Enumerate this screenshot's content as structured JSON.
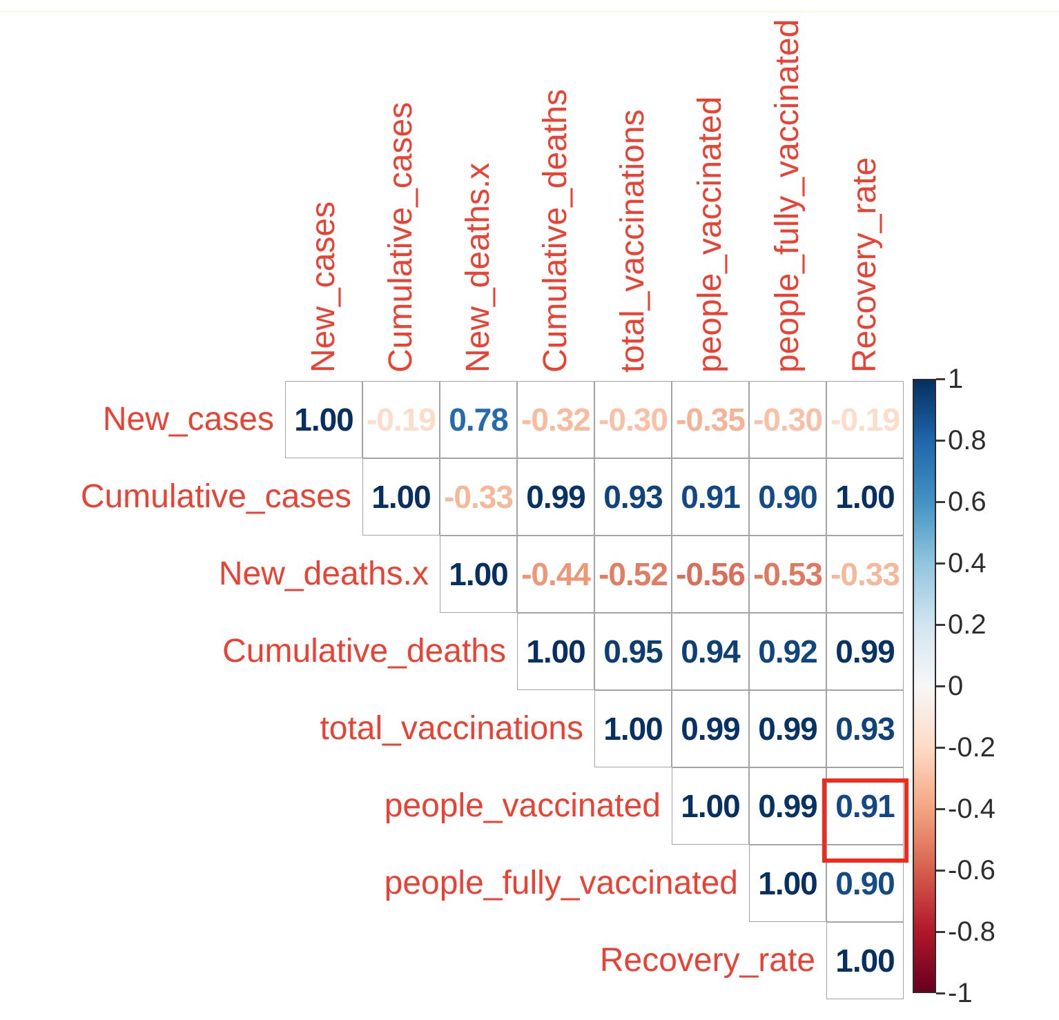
{
  "chart_data": {
    "type": "heatmap",
    "title": "",
    "description": "Upper-triangle correlation matrix with diagonal, values shown as colored numbers",
    "categories": [
      "New_cases",
      "Cumulative_cases",
      "New_deaths.x",
      "Cumulative_deaths",
      "total_vaccinations",
      "people_vaccinated",
      "people_fully_vaccinated",
      "Recovery_rate"
    ],
    "matrix": [
      [
        "1.00",
        "-0.19",
        "0.78",
        "-0.32",
        "-0.30",
        "-0.35",
        "-0.30",
        "-0.19"
      ],
      [
        null,
        "1.00",
        "-0.33",
        "0.99",
        "0.93",
        "0.91",
        "0.90",
        "1.00"
      ],
      [
        null,
        null,
        "1.00",
        "-0.44",
        "-0.52",
        "-0.56",
        "-0.53",
        "-0.33"
      ],
      [
        null,
        null,
        null,
        "1.00",
        "0.95",
        "0.94",
        "0.92",
        "0.99"
      ],
      [
        null,
        null,
        null,
        null,
        "1.00",
        "0.99",
        "0.99",
        "0.93"
      ],
      [
        null,
        null,
        null,
        null,
        null,
        "1.00",
        "0.99",
        "0.91"
      ],
      [
        null,
        null,
        null,
        null,
        null,
        null,
        "1.00",
        "0.90"
      ],
      [
        null,
        null,
        null,
        null,
        null,
        null,
        null,
        "1.00"
      ]
    ],
    "highlighted_cell": {
      "row": "people_vaccinated",
      "column": "Recovery_rate",
      "value": "0.91"
    },
    "colorbar": {
      "position": "right",
      "range": [
        -1,
        1
      ],
      "ticks": [
        "1",
        "0.8",
        "0.6",
        "0.4",
        "0.2",
        "0",
        "-0.2",
        "-0.4",
        "-0.6",
        "-0.8",
        "-1"
      ]
    },
    "colorscale": [
      {
        "t": 1.0,
        "color": "#053061"
      },
      {
        "t": 0.8,
        "color": "#2166ac"
      },
      {
        "t": 0.6,
        "color": "#4393c3"
      },
      {
        "t": 0.4,
        "color": "#92c5de"
      },
      {
        "t": 0.2,
        "color": "#d1e5f0"
      },
      {
        "t": 0.0,
        "color": "#f7f7f7"
      },
      {
        "t": -0.2,
        "color": "#fddbc7"
      },
      {
        "t": -0.4,
        "color": "#f4a582"
      },
      {
        "t": -0.6,
        "color": "#d6604d"
      },
      {
        "t": -0.8,
        "color": "#b2182b"
      },
      {
        "t": -1.0,
        "color": "#67001f"
      }
    ],
    "colors": {
      "label_red": "#eb4132",
      "highlight_red": "#ed2c1e",
      "grid_line": "#a3a3a3",
      "tick_text": "#2e2e2e",
      "background": "#ffffff",
      "top_line": "#faf5dd"
    }
  }
}
